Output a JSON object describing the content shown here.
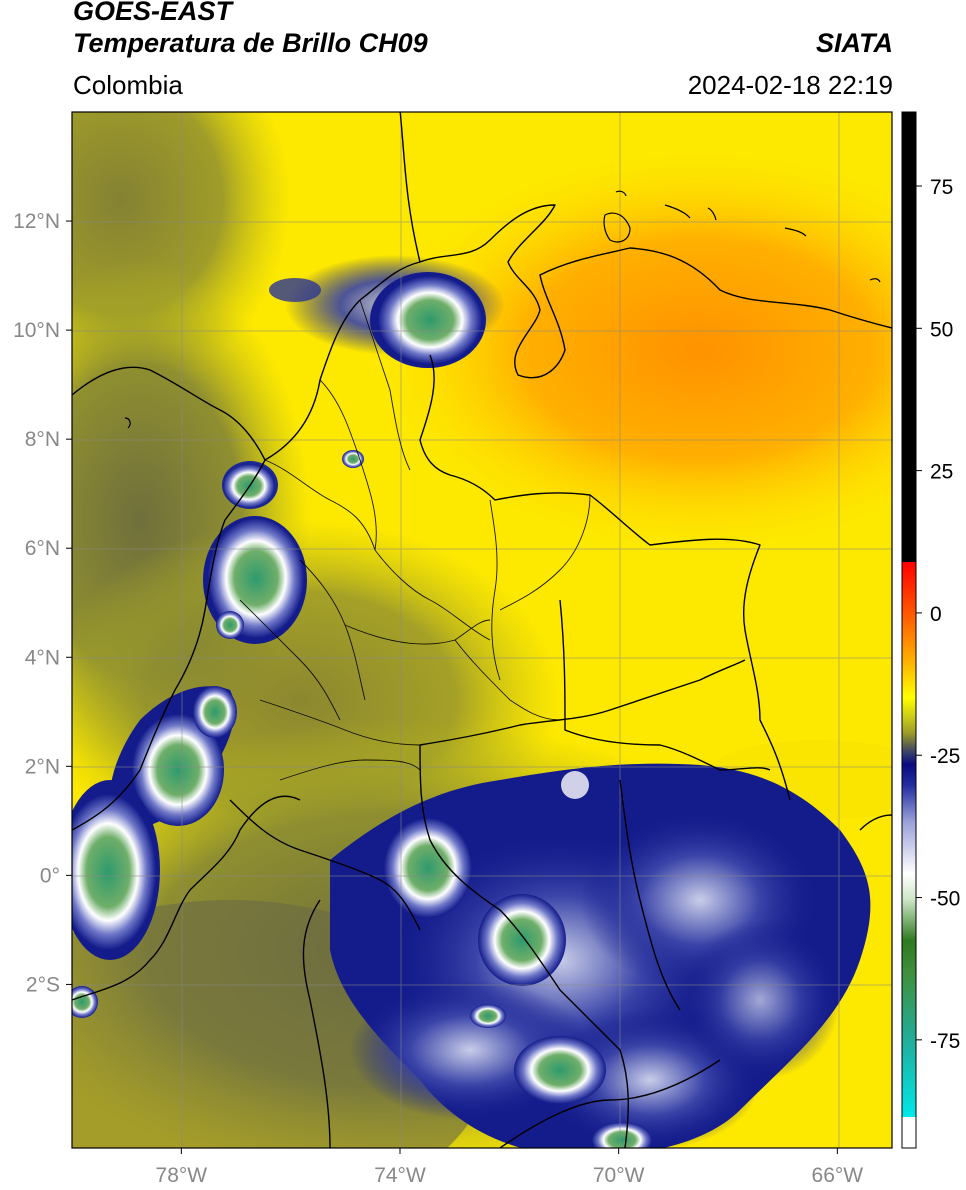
{
  "header": {
    "satellite": "GOES-EAST",
    "product": "Temperatura de Brillo CH09",
    "organization": "SIATA",
    "region": "Colombia",
    "timestamp": "2024-02-18 22:19"
  },
  "map": {
    "lat_labels": [
      "12°N",
      "10°N",
      "8°N",
      "6°N",
      "4°N",
      "2°N",
      "0°",
      "2°S"
    ],
    "lon_labels": [
      "78°W",
      "74°W",
      "70°W",
      "66°W"
    ],
    "lon_range": [
      -80,
      -65
    ],
    "lat_range": [
      -5,
      14
    ],
    "colors": {
      "warm_yellow": "#ffee00",
      "dry_orange": "#ff9900",
      "olive": "#8a8a2a",
      "cold_navy": "#101a8a",
      "cloud_white": "#f4f4ff",
      "core_green": "#3f9a5a"
    }
  },
  "colorbar": {
    "tick_labels": [
      "75",
      "50",
      "25",
      "0",
      "-25",
      "-50",
      "-75"
    ],
    "tick_values": [
      75,
      50,
      25,
      0,
      -25,
      -50,
      -75
    ],
    "range": [
      -94,
      88
    ]
  }
}
